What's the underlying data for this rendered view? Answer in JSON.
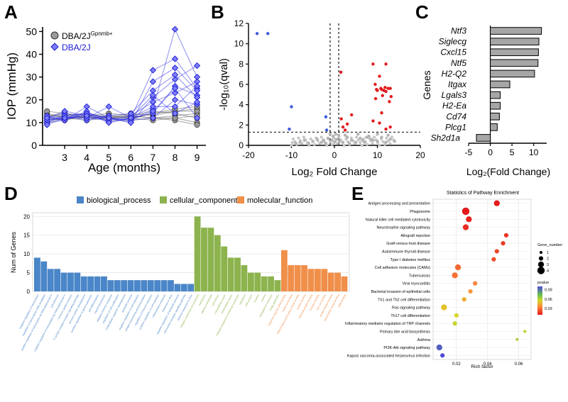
{
  "figure": {
    "panel_letters": [
      "A",
      "B",
      "C",
      "D",
      "E"
    ]
  },
  "chart_data": [
    {
      "panel": "A",
      "type": "line",
      "xlabel": "Age (months)",
      "ylabel": "IOP (mmHg)",
      "x_ticks": [
        3,
        4,
        5,
        6,
        7,
        8,
        9
      ],
      "y_ticks": [
        0,
        10,
        20,
        30,
        40,
        50
      ],
      "xlim": [
        2,
        9.4
      ],
      "ylim": [
        0,
        52
      ],
      "legend": {
        "placement": "top-left",
        "items": [
          {
            "label": "DBA/2J",
            "superscript": "Gpnmb+",
            "marker": "circle",
            "color": "#808080"
          },
          {
            "label": "DBA/2J",
            "superscript": "",
            "marker": "diamond",
            "color": "#1a1adc"
          }
        ]
      },
      "series": [
        {
          "name": "DBA/2J Gpnmb+",
          "color": "#555555",
          "fill": "#9a9a9a",
          "x": [
            2.2,
            3,
            4,
            5,
            6,
            7,
            8,
            9
          ],
          "lines": [
            [
              13,
              14,
              13,
              13,
              12,
              14,
              15,
              16
            ],
            [
              12,
              13,
              14,
              12,
              13,
              12,
              13,
              14
            ],
            [
              14,
              12,
              13,
              14,
              13,
              15,
              14,
              12
            ],
            [
              11,
              12,
              12,
              13,
              12,
              11,
              12,
              10
            ],
            [
              15,
              14,
              12,
              12,
              14,
              13,
              15,
              15
            ],
            [
              12,
              11,
              13,
              11,
              11,
              12,
              11,
              9
            ],
            [
              10,
              12,
              11,
              12,
              12,
              14,
              16,
              17
            ],
            [
              13,
              13,
              12,
              12,
              13,
              12,
              12,
              13
            ]
          ]
        },
        {
          "name": "DBA/2J",
          "color": "#2a2ae6",
          "fill": "#7d7dff",
          "x": [
            2.2,
            3,
            4,
            5,
            6,
            7,
            8,
            9
          ],
          "lines": [
            [
              11,
              13,
              14,
              12,
              11,
              16,
              51,
              30
            ],
            [
              12,
              12,
              13,
              11,
              12,
              33,
              38,
              25
            ],
            [
              10,
              11,
              17,
              12,
              10,
              21,
              29,
              35
            ],
            [
              12,
              14,
              12,
              17,
              12,
              14,
              26,
              22
            ],
            [
              11,
              12,
              12,
              11,
              13,
              19,
              23,
              28
            ],
            [
              13,
              11,
              14,
              12,
              11,
              12,
              20,
              18
            ],
            [
              10,
              13,
              11,
              13,
              14,
              24,
              31,
              21
            ],
            [
              12,
              11,
              15,
              10,
              12,
              17,
              17,
              26
            ],
            [
              11,
              12,
              12,
              12,
              11,
              15,
              25,
              12
            ],
            [
              9,
              12,
              14,
              10,
              12,
              22,
              14,
              19
            ],
            [
              12,
              15,
              13,
              12,
              10,
              28,
              34,
              24
            ]
          ]
        }
      ]
    },
    {
      "panel": "B",
      "type": "scatter",
      "title": "",
      "xlabel": "Log₂ Fold Change",
      "ylabel": "-log₁₀(qval)",
      "x_ticks": [
        -20,
        -10,
        0,
        10,
        20
      ],
      "y_ticks": [
        0,
        2,
        4,
        6,
        8,
        10,
        12
      ],
      "xlim": [
        -20,
        20
      ],
      "ylim": [
        0,
        12
      ],
      "thresholds": {
        "qval_line": 1.3,
        "fc_lines": [
          -1,
          1
        ]
      },
      "groups": [
        {
          "name": "down",
          "color": "#3b5bdb",
          "points": [
            [
              -18,
              11
            ],
            [
              -15.5,
              11
            ],
            [
              -10,
              3.8
            ],
            [
              -10.5,
              1.6
            ],
            [
              -2,
              2.8
            ],
            [
              -1.8,
              1.5
            ]
          ]
        },
        {
          "name": "up",
          "color": "#e31a1c",
          "points": [
            [
              1.5,
              7.2
            ],
            [
              9,
              8
            ],
            [
              12,
              8
            ],
            [
              9.5,
              6
            ],
            [
              10.5,
              6.8
            ],
            [
              11,
              5.5
            ],
            [
              11.5,
              5.4
            ],
            [
              12,
              5.3
            ],
            [
              12.5,
              5.6
            ],
            [
              13,
              5.6
            ],
            [
              10,
              5.4
            ],
            [
              9.8,
              5.5
            ],
            [
              10.8,
              5.6
            ],
            [
              11.8,
              5.7
            ],
            [
              9.6,
              4.6
            ],
            [
              11.2,
              4.9
            ],
            [
              12.8,
              4.3
            ],
            [
              13.2,
              4.8
            ],
            [
              3,
              2.1
            ],
            [
              2,
              1.8
            ],
            [
              2.5,
              1.5
            ],
            [
              1.6,
              2.6
            ],
            [
              4,
              3
            ],
            [
              12,
              1.6
            ],
            [
              13,
              1.8
            ],
            [
              10.5,
              2.2
            ],
            [
              9,
              2.4
            ],
            [
              11,
              3.2
            ]
          ]
        },
        {
          "name": "ns",
          "color": "#b3b3b3",
          "points": [
            [
              0,
              0.3
            ],
            [
              0.5,
              0.6
            ],
            [
              -0.6,
              0.5
            ],
            [
              1.2,
              0.4
            ],
            [
              -1.5,
              0.7
            ],
            [
              2,
              0.3
            ],
            [
              -2.5,
              0.5
            ],
            [
              3,
              0.8
            ],
            [
              -3,
              0.3
            ],
            [
              4,
              0.5
            ],
            [
              -4,
              0.6
            ],
            [
              5,
              0.3
            ],
            [
              -5,
              0.4
            ],
            [
              6,
              0.7
            ],
            [
              7,
              0.3
            ],
            [
              8,
              0.9
            ],
            [
              9,
              0.5
            ],
            [
              10,
              0.4
            ],
            [
              11,
              0.8
            ],
            [
              12,
              0.3
            ],
            [
              13,
              0.6
            ],
            [
              -6,
              0.2
            ],
            [
              -7,
              0.5
            ],
            [
              -8,
              0.3
            ],
            [
              -9,
              0.2
            ],
            [
              0.3,
              1.1
            ],
            [
              -0.3,
              0.9
            ],
            [
              1,
              1.0
            ],
            [
              -1,
              1.1
            ],
            [
              2.5,
              1.0
            ],
            [
              5.5,
              1.1
            ],
            [
              7.5,
              0.8
            ],
            [
              10,
              1.1
            ],
            [
              12.5,
              1.0
            ],
            [
              3.5,
              0.2
            ],
            [
              -2,
              0.2
            ],
            [
              6.5,
              0.5
            ],
            [
              8.5,
              0.6
            ],
            [
              14,
              0.4
            ]
          ]
        }
      ]
    },
    {
      "panel": "C",
      "type": "bar",
      "orientation": "horizontal",
      "xlabel": "Log₂(Fold Change)",
      "ylabel": "Genes",
      "x_ticks": [
        -5,
        0,
        5,
        10
      ],
      "xlim": [
        -5,
        13
      ],
      "categories": [
        "Ntf3",
        "Siglecg",
        "Cxcl15",
        "Ntf5",
        "H2-Q2",
        "Itgax",
        "Lgals3",
        "H2-Ea",
        "Cd74",
        "Plcg1",
        "Sh2d1a"
      ],
      "values": [
        11.8,
        11.2,
        11.1,
        11.0,
        10.2,
        4.5,
        2.3,
        2.3,
        2.1,
        1.6,
        -3.2
      ],
      "color": "#a6a6a6"
    },
    {
      "panel": "D",
      "type": "bar",
      "ylabel": "Num of Genes",
      "y_ticks": [
        0,
        5,
        10,
        15,
        20
      ],
      "ylim": [
        0,
        21
      ],
      "legend": [
        {
          "label": "biological_process",
          "color": "#4a86c8"
        },
        {
          "label": "cellular_component",
          "color": "#8cb34d"
        },
        {
          "label": "molecular_function",
          "color": "#f08f4a"
        }
      ],
      "series": [
        {
          "name": "biological_process",
          "color": "#4a86c8",
          "categories": [
            "negative regulation of transcription",
            "regulation of transcription DNA-templated",
            "positive regulation of transcription by RNA polymerase II",
            "cell adhesion",
            "negative regulation of transcription by RNA polymerase II",
            "immune system process",
            "G protein-coupled receptor signaling pathway",
            "nervous system development",
            "positive regulation of gene expression",
            "cell differentiation",
            "signal transduction",
            "adaptive immune response",
            "regulation of cell proliferation",
            "multicellular organism development",
            "apoptotic process",
            "negative regulation of cell migration",
            "antigen processing and presentation",
            "regulation of immune response",
            "positive regulation of cell migration",
            "inflammatory response",
            "response to virus",
            "negative regulation of apoptotic process",
            "cell surface receptor signaling pathway",
            "defense response to virus"
          ],
          "values": [
            9,
            8,
            6,
            6,
            5,
            5,
            5,
            4,
            4,
            4,
            4,
            3,
            3,
            3,
            3,
            3,
            3,
            3,
            3,
            3,
            3,
            2,
            2,
            2
          ]
        },
        {
          "name": "cellular_component",
          "color": "#8cb34d",
          "categories": [
            "integral component of membrane",
            "membrane",
            "plasma membrane",
            "cell surface",
            "extracellular region",
            "extracellular space",
            "integral component of plasma membrane",
            "cytoplasm",
            "cell junction",
            "nucleus",
            "cytosol",
            "endoplasmic reticulum",
            "Golgi apparatus"
          ],
          "values": [
            20,
            17,
            17,
            15,
            12,
            9,
            9,
            7,
            5,
            5,
            4,
            4,
            3
          ]
        },
        {
          "name": "molecular_function",
          "color": "#f08f4a",
          "categories": [
            "sequence-specific DNA binding",
            "metal ion binding",
            "DNA-binding transcription factor activity",
            "protein binding",
            "identical protein binding",
            "receptor binding",
            "zinc ion binding",
            "protein kinase binding",
            "transcription factor binding",
            "DNA binding"
          ],
          "values": [
            11,
            7,
            7,
            7,
            6,
            6,
            6,
            5,
            5,
            4
          ]
        }
      ]
    },
    {
      "panel": "E",
      "type": "scatter",
      "title": "Statistics of Pathway Enrichment",
      "xlabel": "Rich factor",
      "x_ticks": [
        0.02,
        0.04,
        0.06
      ],
      "xlim": [
        0.005,
        0.068
      ],
      "size_legend": {
        "title": "Gene_number",
        "values": [
          1,
          2,
          3,
          4
        ]
      },
      "color_legend": {
        "title": "pvalue",
        "ticks": [
          0.09,
          0.06,
          0.03
        ],
        "range": [
          0.01,
          0.1
        ]
      },
      "pathways": [
        {
          "name": "Antigen processing and presentation",
          "rich_factor": 0.046,
          "gene_number": 3,
          "pvalue": 0.005
        },
        {
          "name": "Phagosome",
          "rich_factor": 0.026,
          "gene_number": 4,
          "pvalue": 0.008
        },
        {
          "name": "Natural killer cell mediated cytotoxicity",
          "rich_factor": 0.028,
          "gene_number": 3,
          "pvalue": 0.012
        },
        {
          "name": "Neurotrophin signaling pathway",
          "rich_factor": 0.026,
          "gene_number": 3,
          "pvalue": 0.014
        },
        {
          "name": "Allograft rejection",
          "rich_factor": 0.052,
          "gene_number": 2,
          "pvalue": 0.016
        },
        {
          "name": "Graft-versus-host disease",
          "rich_factor": 0.05,
          "gene_number": 2,
          "pvalue": 0.018
        },
        {
          "name": "Autoimmune thyroid disease",
          "rich_factor": 0.046,
          "gene_number": 2,
          "pvalue": 0.02
        },
        {
          "name": "Type I diabetes mellitus",
          "rich_factor": 0.044,
          "gene_number": 2,
          "pvalue": 0.022
        },
        {
          "name": "Cell adhesion molecules (CAMs)",
          "rich_factor": 0.021,
          "gene_number": 3,
          "pvalue": 0.028
        },
        {
          "name": "Tuberculosis",
          "rich_factor": 0.019,
          "gene_number": 3,
          "pvalue": 0.03
        },
        {
          "name": "Viral myocarditis",
          "rich_factor": 0.032,
          "gene_number": 2,
          "pvalue": 0.035
        },
        {
          "name": "Bacterial invasion of epithelial cells",
          "rich_factor": 0.029,
          "gene_number": 2,
          "pvalue": 0.04
        },
        {
          "name": "Th1 and Th2 cell differentiation",
          "rich_factor": 0.025,
          "gene_number": 2,
          "pvalue": 0.045
        },
        {
          "name": "Ras signaling pathway",
          "rich_factor": 0.012,
          "gene_number": 3,
          "pvalue": 0.05
        },
        {
          "name": "Th17 cell differentiation",
          "rich_factor": 0.02,
          "gene_number": 2,
          "pvalue": 0.055
        },
        {
          "name": "Inflammatory mediator regulation of TRP channels",
          "rich_factor": 0.019,
          "gene_number": 2,
          "pvalue": 0.057
        },
        {
          "name": "Primary bile acid biosynthesis",
          "rich_factor": 0.064,
          "gene_number": 1,
          "pvalue": 0.06
        },
        {
          "name": "Asthma",
          "rich_factor": 0.059,
          "gene_number": 1,
          "pvalue": 0.062
        },
        {
          "name": "PI3K-Akt signaling pathway",
          "rich_factor": 0.009,
          "gene_number": 3,
          "pvalue": 0.095
        },
        {
          "name": "Kaposi sarcoma-associated herpesvirus infection",
          "rich_factor": 0.011,
          "gene_number": 2,
          "pvalue": 0.1
        }
      ]
    }
  ]
}
